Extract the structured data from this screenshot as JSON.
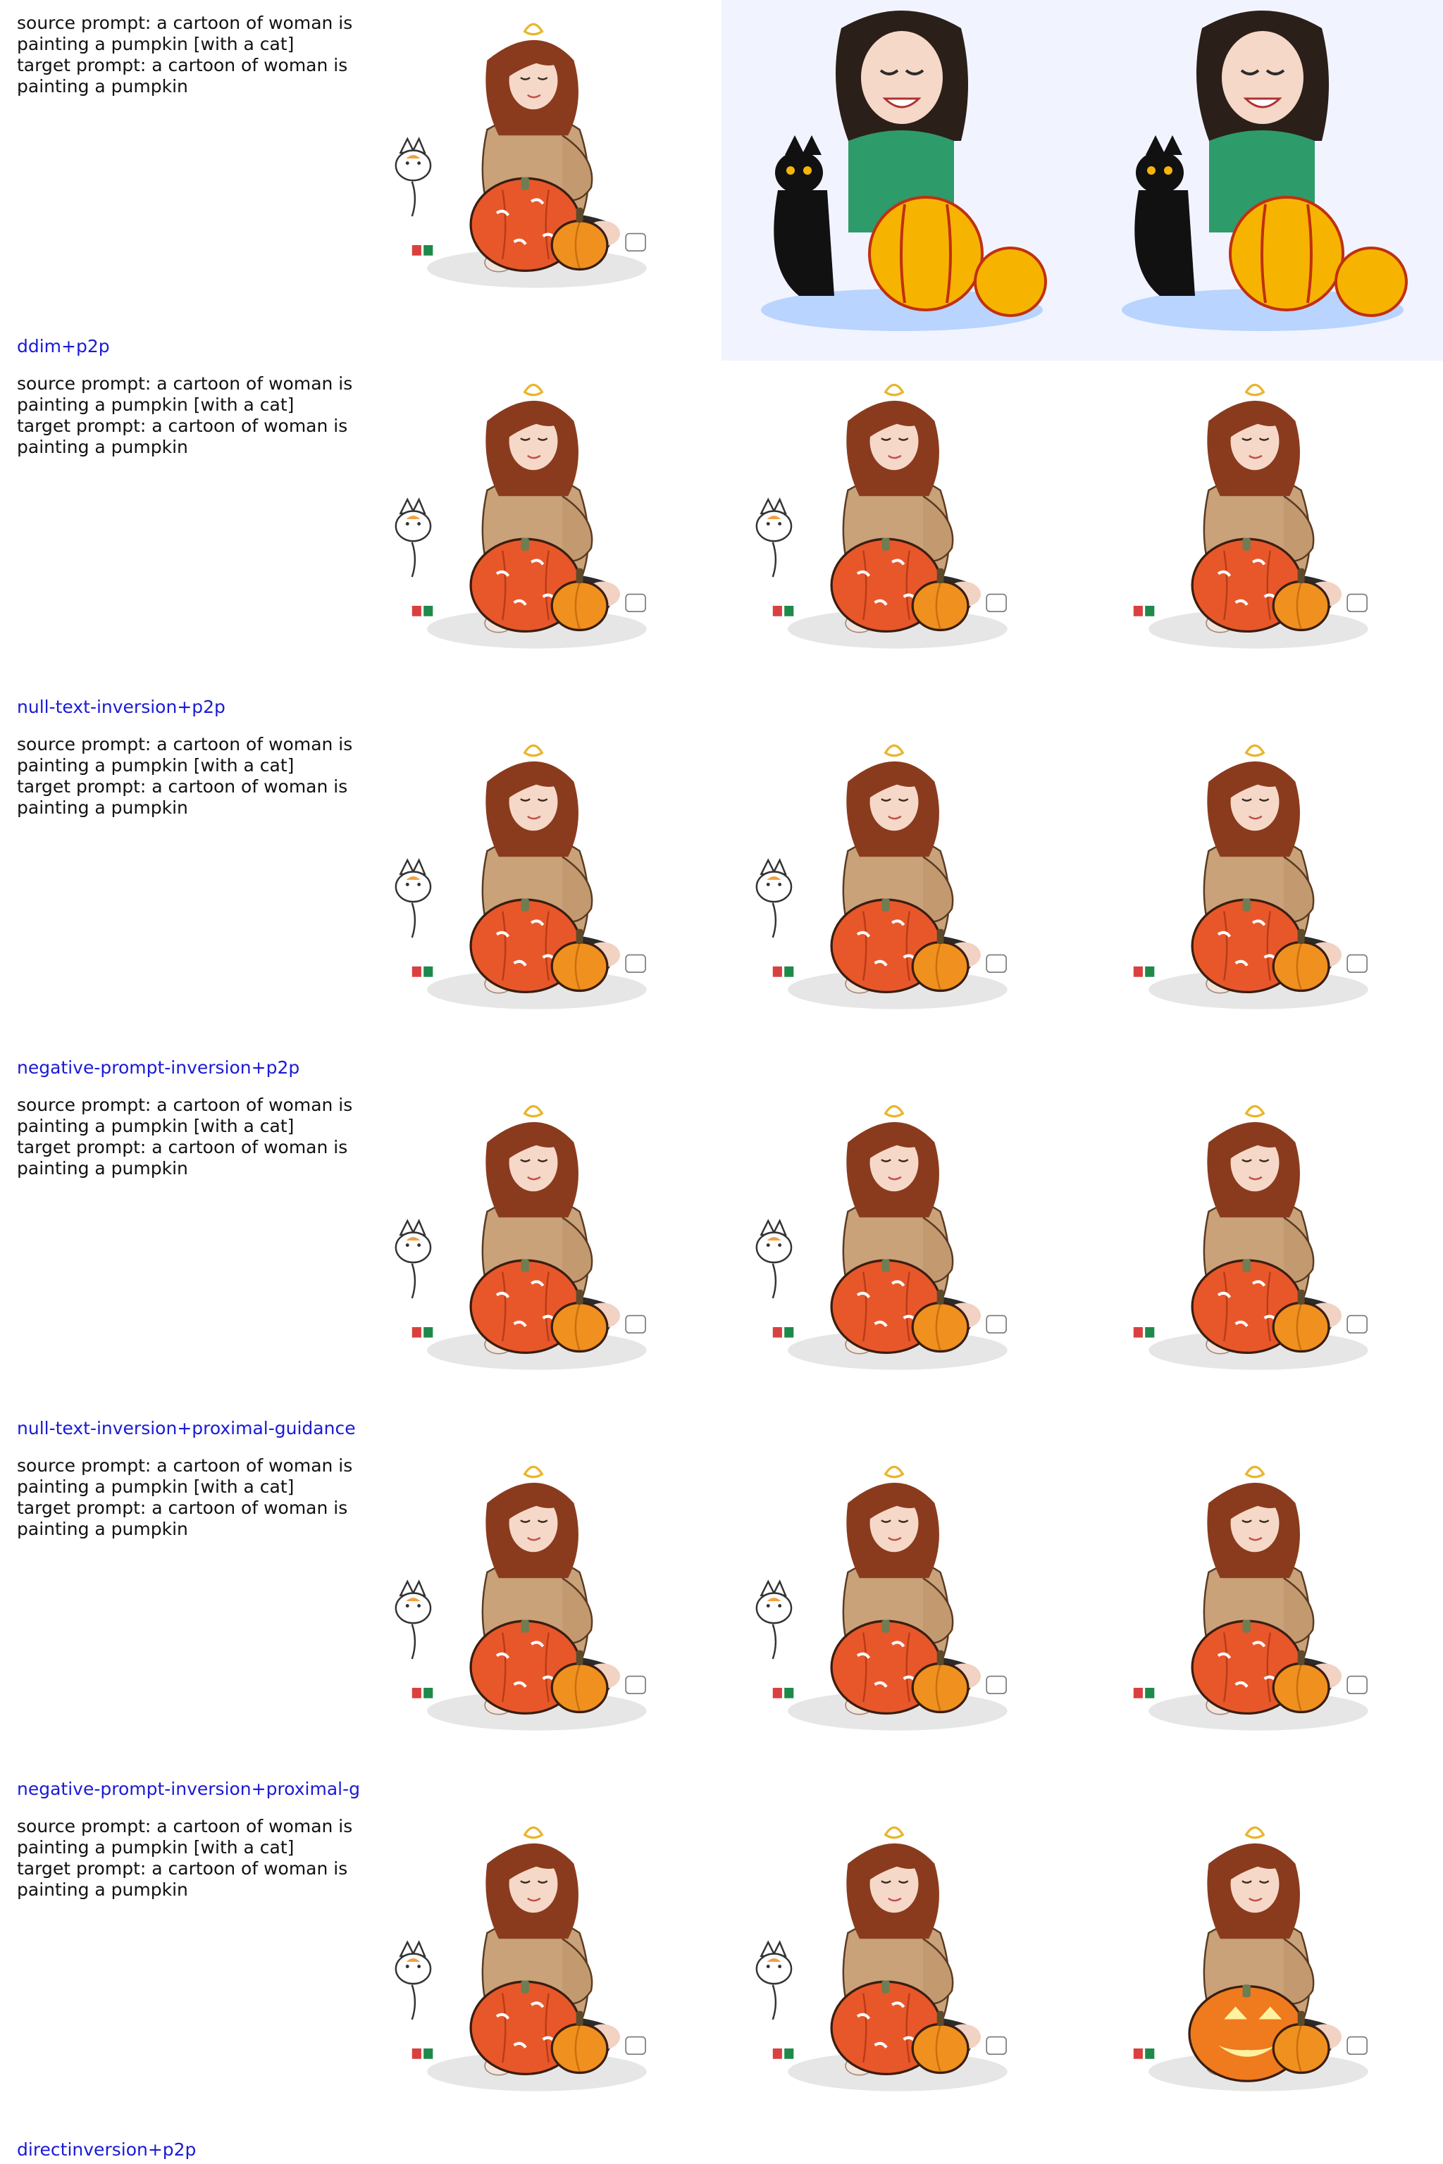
{
  "rows": [
    {
      "source_prompt_line1": "source prompt: a cartoon of woman is",
      "source_prompt_line2": "painting a pumpkin [with a cat]",
      "target_prompt_line1": "target prompt: a cartoon of woman is",
      "target_prompt_line2": "painting a pumpkin",
      "method": "ddim+p2p",
      "images": [
        "source-woman-cat-pumpkin",
        "reconstruction-green-sweater-black-cat",
        "edit-green-sweater-black-cat"
      ]
    },
    {
      "source_prompt_line1": "source prompt: a cartoon of woman is",
      "source_prompt_line2": "painting a pumpkin [with a cat]",
      "target_prompt_line1": "target prompt: a cartoon of woman is",
      "target_prompt_line2": "painting a pumpkin",
      "method": "null-text-inversion+p2p",
      "images": [
        "source-woman-cat-pumpkin",
        "reconstruction-woman-cat-pumpkin",
        "edit-woman-pumpkin"
      ]
    },
    {
      "source_prompt_line1": "source prompt: a cartoon of woman is",
      "source_prompt_line2": "painting a pumpkin [with a cat]",
      "target_prompt_line1": "target prompt: a cartoon of woman is",
      "target_prompt_line2": "painting a pumpkin",
      "method": "negative-prompt-inversion+p2p",
      "images": [
        "source-woman-cat-pumpkin",
        "reconstruction-woman-cat-pumpkin",
        "edit-woman-pumpkin"
      ]
    },
    {
      "source_prompt_line1": "source prompt: a cartoon of woman is",
      "source_prompt_line2": "painting a pumpkin [with a cat]",
      "target_prompt_line1": "target prompt: a cartoon of woman is",
      "target_prompt_line2": "painting a pumpkin",
      "method": "null-text-inversion+proximal-guidance",
      "images": [
        "source-woman-cat-pumpkin",
        "reconstruction-woman-cat-pumpkin",
        "edit-woman-pumpkin"
      ]
    },
    {
      "source_prompt_line1": "source prompt: a cartoon of woman is",
      "source_prompt_line2": "painting a pumpkin [with a cat]",
      "target_prompt_line1": "target prompt: a cartoon of woman is",
      "target_prompt_line2": "painting a pumpkin",
      "method": "negative-prompt-inversion+proximal-g",
      "images": [
        "source-woman-cat-pumpkin",
        "reconstruction-woman-cat-pumpkin",
        "edit-woman-pumpkin"
      ]
    },
    {
      "source_prompt_line1": "source prompt: a cartoon of woman is",
      "source_prompt_line2": "painting a pumpkin [with a cat]",
      "target_prompt_line1": "target prompt: a cartoon of woman is",
      "target_prompt_line2": "painting a pumpkin",
      "method": "directinversion+p2p",
      "images": [
        "source-woman-cat-pumpkin",
        "reconstruction-woman-cat-pumpkin",
        "edit-woman-jack-o-lantern"
      ]
    }
  ],
  "colors": {
    "method_label": "#1a1ad6",
    "prompt_text": "#111111",
    "sweater_tan": "#c9a27a",
    "hair_auburn": "#8a3b1e",
    "pumpkin_orange": "#e8572a",
    "small_pumpkin": "#f0901f",
    "green_sweater": "#2e9b6a",
    "yellow_pumpkin": "#f6b400"
  }
}
